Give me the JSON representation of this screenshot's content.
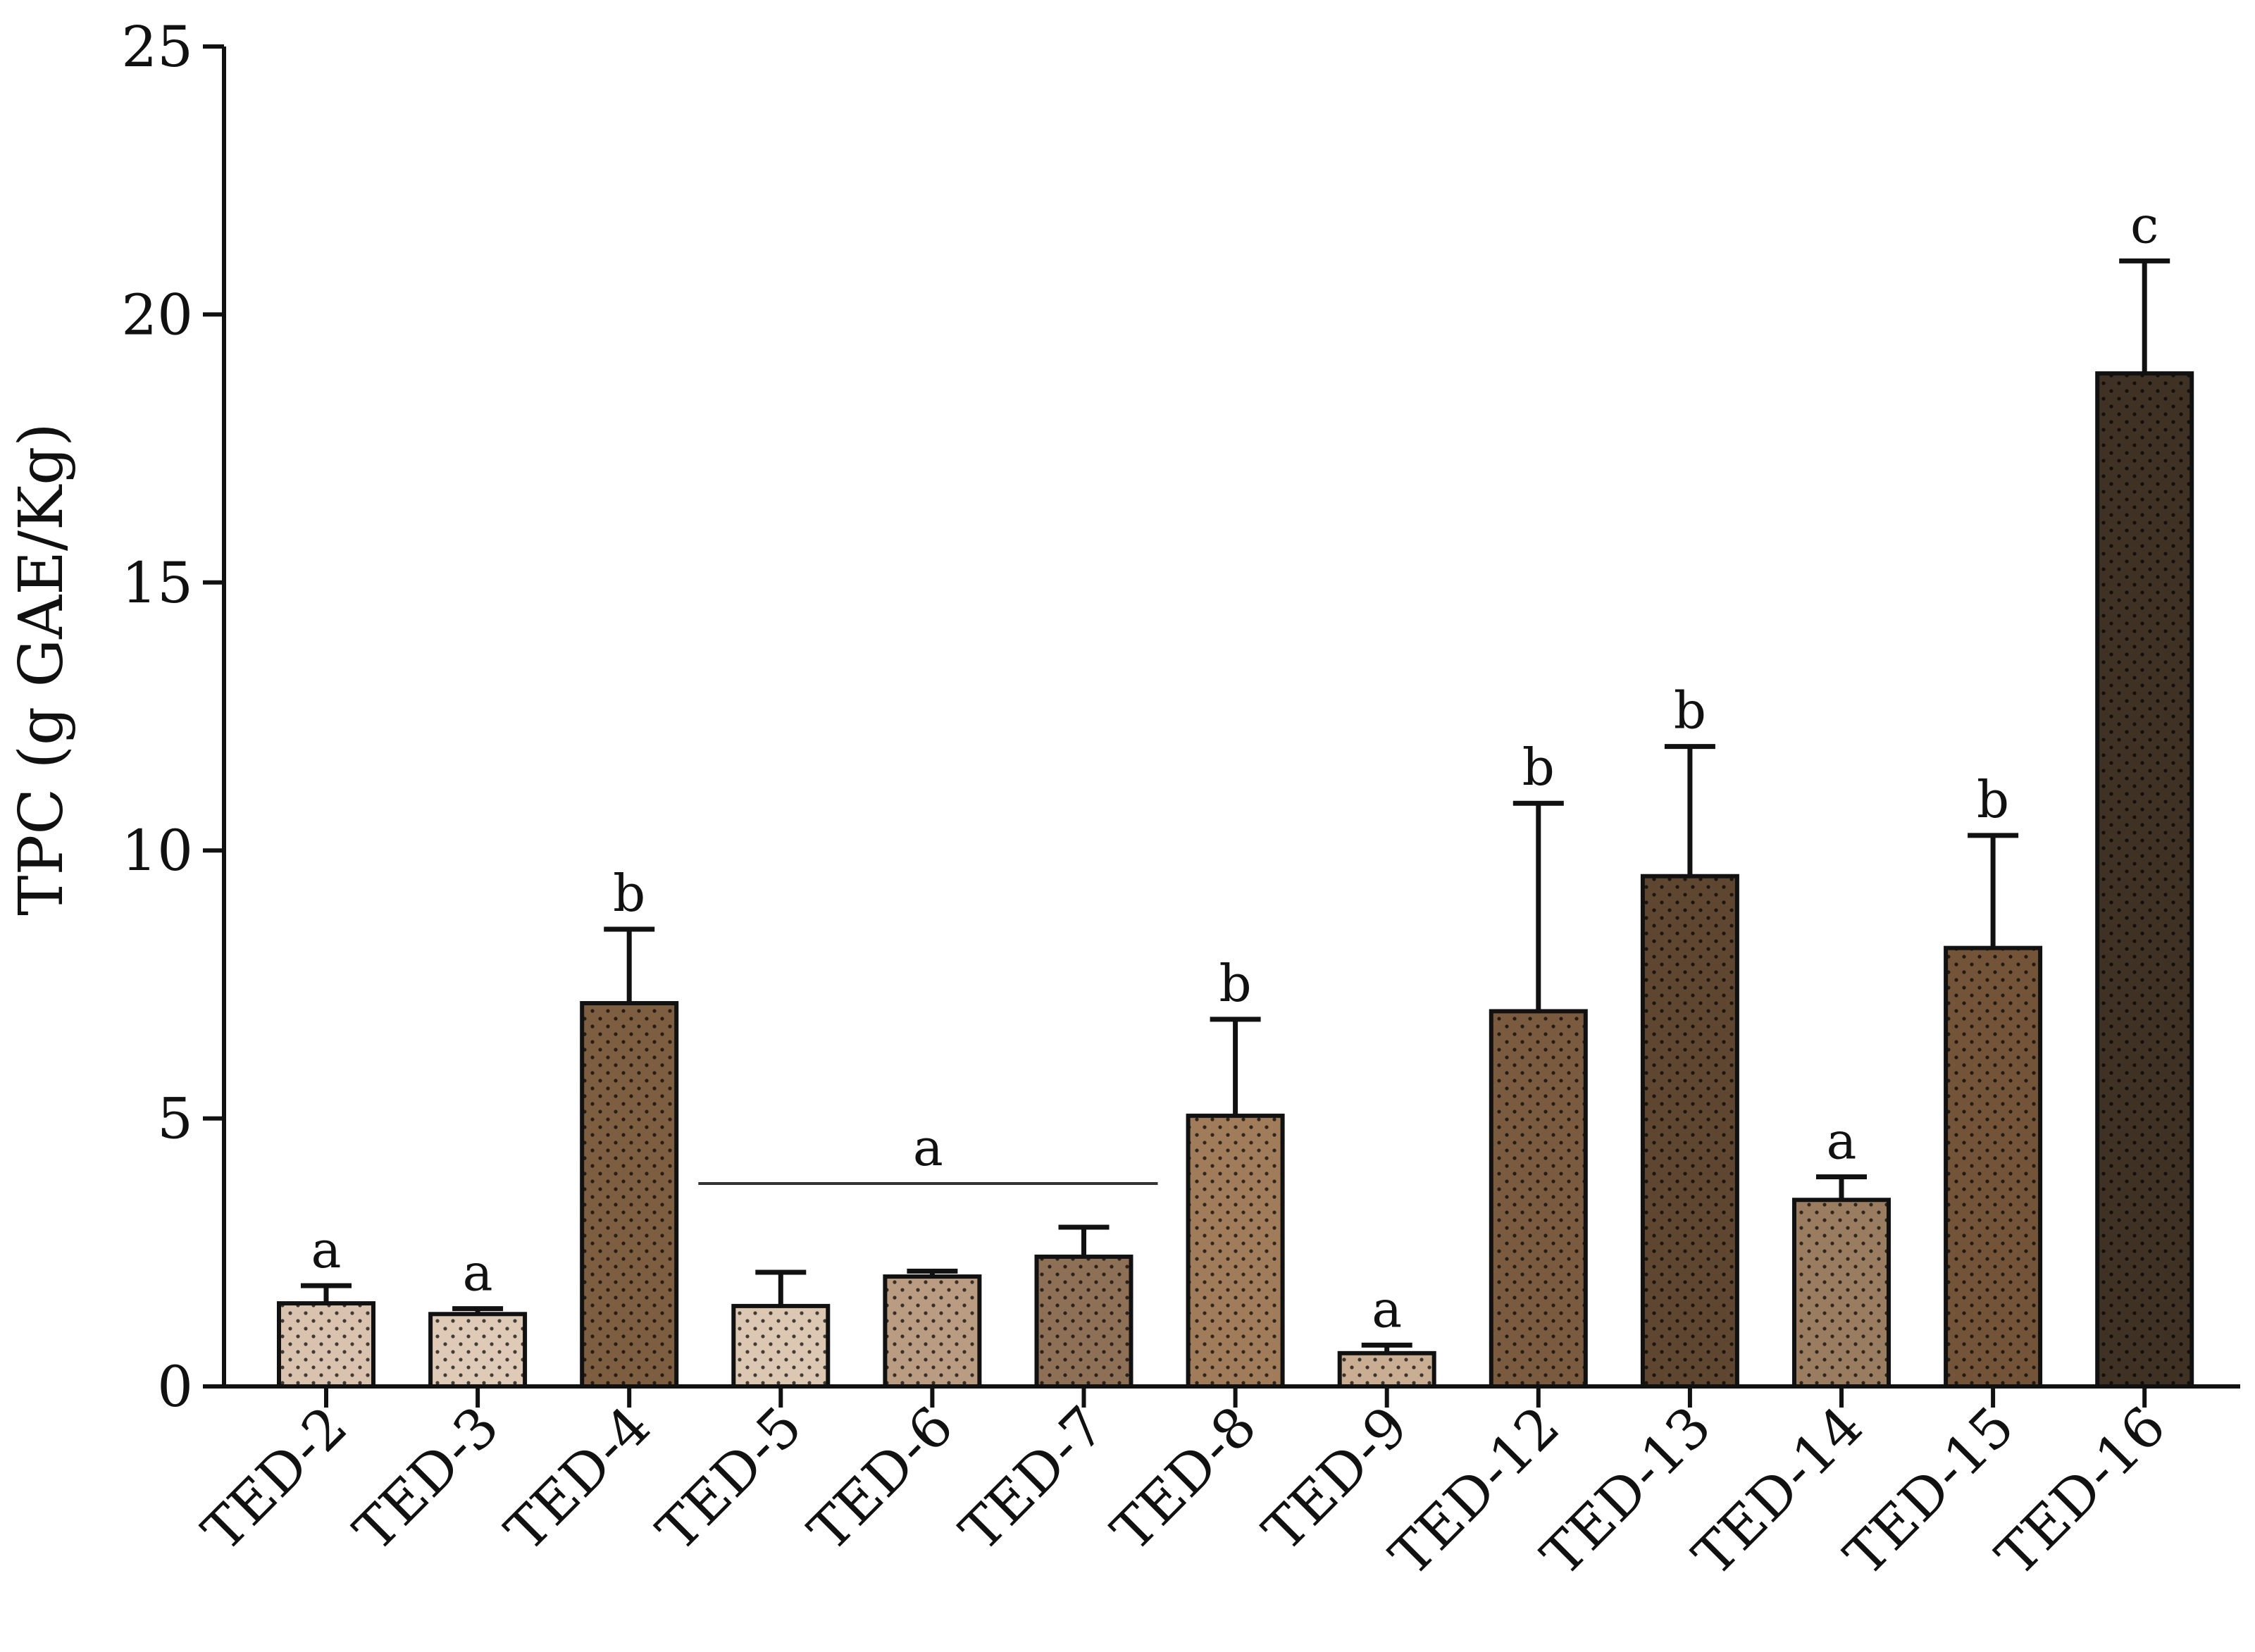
{
  "chart_data": {
    "type": "bar",
    "ylabel": "TPC (g GAE/Kg)",
    "xlabel": "",
    "ylim": [
      0,
      25
    ],
    "yticks": [
      0,
      5,
      10,
      15,
      20,
      25
    ],
    "categories": [
      "TED-2",
      "TED-3",
      "TED-4",
      "TED-5",
      "TED-6",
      "TED-7",
      "TED-8",
      "TED-9",
      "TED-12",
      "TED-13",
      "TED-14",
      "TED-15",
      "TED-16"
    ],
    "values": [
      1.55,
      1.35,
      7.15,
      1.5,
      2.05,
      2.42,
      5.05,
      0.62,
      7.0,
      9.52,
      3.48,
      8.18,
      18.9
    ],
    "errors": [
      0.33,
      0.1,
      1.38,
      0.63,
      0.1,
      0.55,
      1.8,
      0.15,
      3.88,
      2.42,
      0.43,
      2.1,
      2.1
    ],
    "significance": [
      "a",
      "a",
      "b",
      "",
      "",
      "",
      "b",
      "a",
      "b",
      "b",
      "a",
      "b",
      "c"
    ],
    "group_annotation": {
      "label": "a",
      "from_category": "TED-5",
      "to_category": "TED-7"
    },
    "bar_colors": [
      "#d9c3ae",
      "#decab6",
      "#7e5e40",
      "#dcc7b2",
      "#b99c82",
      "#8e7057",
      "#a07c5a",
      "#c9ae93",
      "#7a5b3f",
      "#5e4630",
      "#9a7d60",
      "#735438",
      "#3f3225"
    ],
    "axis_color": "#111111",
    "bar_pattern": "dotted"
  }
}
